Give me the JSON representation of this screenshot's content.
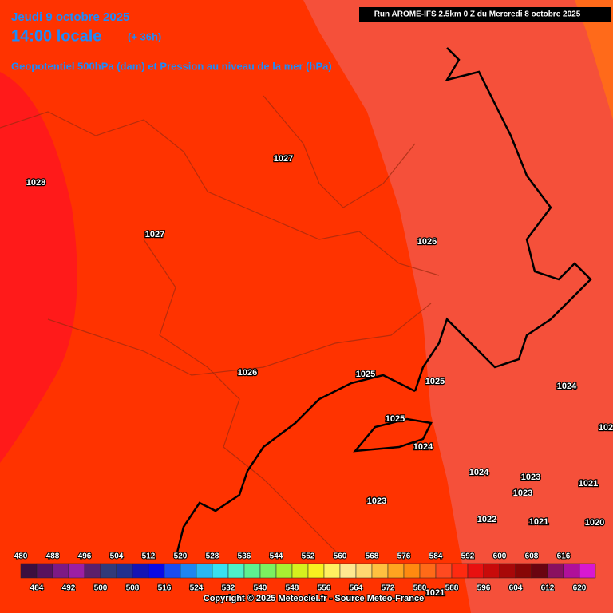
{
  "header": {
    "date": "Jeudi 9 octobre 2025",
    "time": "14:00 locale",
    "lead": "(+ 36h)",
    "subtitle": "Geopotentiel 500hPa (dam) et Pression au niveau de la mer (hPa)",
    "run": "Run AROME-IFS 2.5km 0 Z du Mercredi 8 octobre 2025"
  },
  "isobar_labels": [
    "1027",
    "1028",
    "1027",
    "1026",
    "1026",
    "1025",
    "1025",
    "1024",
    "1025",
    "1024",
    "102",
    "1024",
    "1023",
    "1021",
    "1023",
    "1023",
    "1022",
    "1021",
    "1020",
    "1021"
  ],
  "legend": {
    "top_labels": [
      "480",
      "488",
      "496",
      "504",
      "512",
      "520",
      "528",
      "536",
      "544",
      "552",
      "560",
      "568",
      "576",
      "584",
      "592",
      "600",
      "608",
      "616"
    ],
    "bottom_labels": [
      "484",
      "492",
      "500",
      "508",
      "516",
      "524",
      "532",
      "540",
      "548",
      "556",
      "564",
      "572",
      "580",
      "588",
      "596",
      "604",
      "612",
      "620"
    ],
    "colors": [
      "#3c0f3f",
      "#58125e",
      "#7d1a85",
      "#9c1fa3",
      "#5b1f6b",
      "#323a7a",
      "#23308f",
      "#1414b4",
      "#0a0ae6",
      "#1a4cf0",
      "#1f86f0",
      "#2ab8f2",
      "#38e0f0",
      "#4ef0c8",
      "#5ef090",
      "#7cf060",
      "#a8f032",
      "#d6f01e",
      "#f8f020",
      "#fff060",
      "#ffe890",
      "#ffd870",
      "#ffc040",
      "#ffa420",
      "#ff8a10",
      "#ff6a18",
      "#ff4a20",
      "#ff2a10",
      "#e81010",
      "#c80a0a",
      "#a80808",
      "#880606",
      "#6a0410",
      "#8a1060",
      "#b0109a",
      "#d818d0"
    ]
  },
  "copyright": "Copyright © 2025 Meteociel.fr - Source Meteo-France"
}
